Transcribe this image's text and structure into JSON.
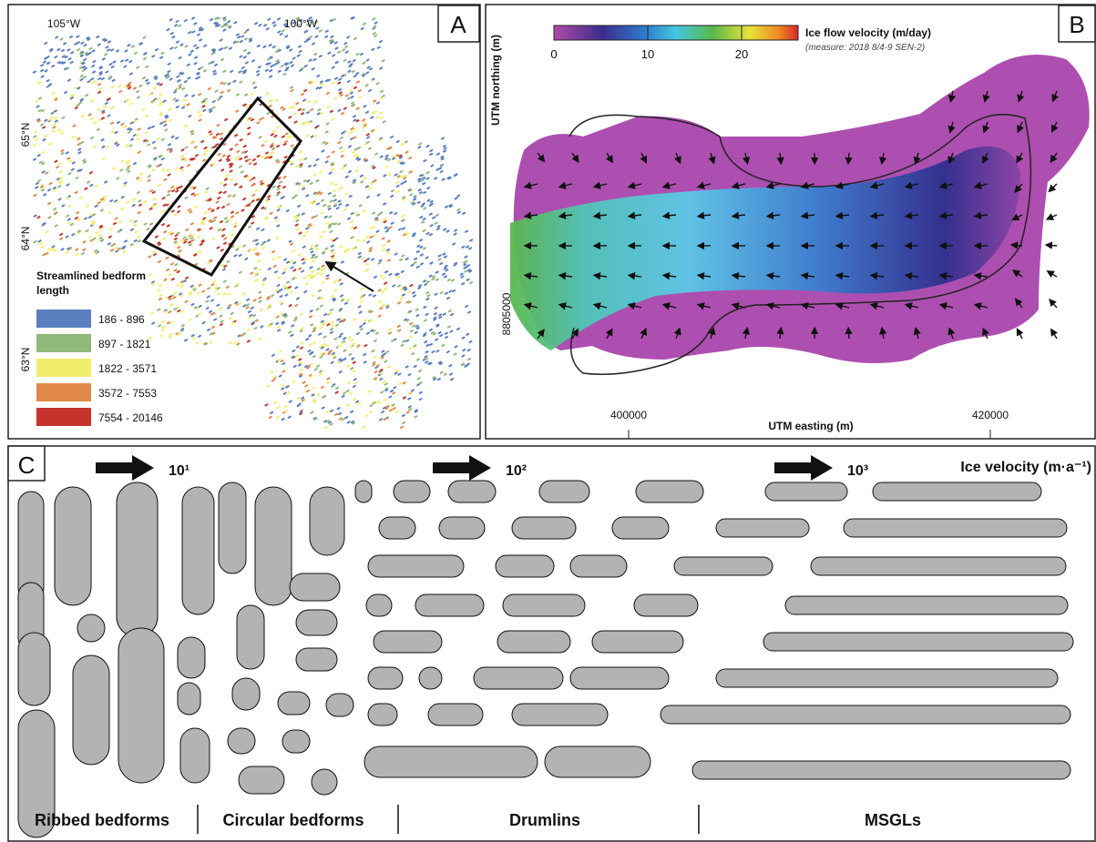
{
  "panels": {
    "a": {
      "label": "A",
      "lon_labels": [
        "105°W",
        "100°W"
      ],
      "lat_labels": [
        "65°N",
        "64°N",
        "63°N"
      ],
      "legend": {
        "title": "Streamlined bedform length",
        "items": [
          {
            "label": "186 - 896",
            "color": "#5b7fbf"
          },
          {
            "label": "897 - 1821",
            "color": "#8fb87a"
          },
          {
            "label": "1822 - 3571",
            "color": "#f1ee6c"
          },
          {
            "label": "3572 - 7553",
            "color": "#e0884a"
          },
          {
            "label": "7554 - 20146",
            "color": "#c4342d"
          }
        ]
      }
    },
    "b": {
      "label": "B",
      "colorbar_title": "Ice flow velocity (m/day)",
      "colorbar_note": "(measure: 2018 8/4-9 SEN-2)",
      "colorbar_ticks": [
        "0",
        "10",
        "20"
      ],
      "y_axis_label": "UTM northing (m)",
      "y_tick": "8805000",
      "x_ticks": [
        "400000",
        "420000"
      ],
      "x_axis_label": "UTM easting (m)"
    },
    "c": {
      "label": "C",
      "velocity_steps": [
        "10¹",
        "10²",
        "10³"
      ],
      "velocity_label": "Ice velocity (m·a⁻¹)",
      "classes": [
        "Ribbed bedforms",
        "Circular bedforms",
        "Drumlins",
        "MSGLs"
      ]
    }
  }
}
